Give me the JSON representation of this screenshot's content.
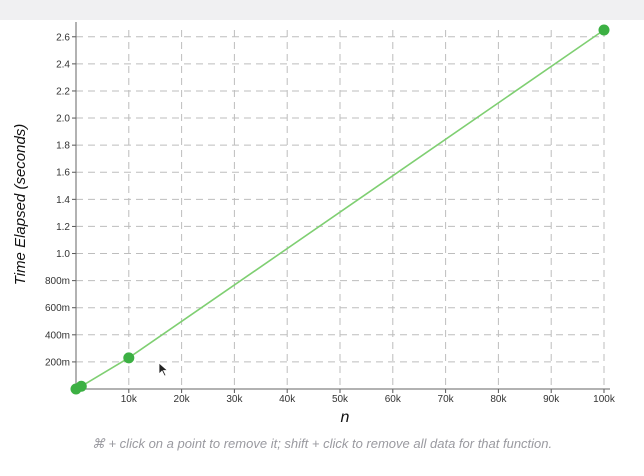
{
  "chart_data": {
    "type": "line",
    "xlabel": "n",
    "ylabel": "Time Elapsed (seconds)",
    "xlim": [
      0,
      100000
    ],
    "ylim": [
      0,
      2.65
    ],
    "grid": true,
    "x_ticks": [
      {
        "value": 10000,
        "label": "10k"
      },
      {
        "value": 20000,
        "label": "20k"
      },
      {
        "value": 30000,
        "label": "30k"
      },
      {
        "value": 40000,
        "label": "40k"
      },
      {
        "value": 50000,
        "label": "50k"
      },
      {
        "value": 60000,
        "label": "60k"
      },
      {
        "value": 70000,
        "label": "70k"
      },
      {
        "value": 80000,
        "label": "80k"
      },
      {
        "value": 90000,
        "label": "90k"
      },
      {
        "value": 100000,
        "label": "100k"
      }
    ],
    "y_ticks": [
      {
        "value": 0.2,
        "label": "200m"
      },
      {
        "value": 0.4,
        "label": "400m"
      },
      {
        "value": 0.6,
        "label": "600m"
      },
      {
        "value": 0.8,
        "label": "800m"
      },
      {
        "value": 1.0,
        "label": "1.0"
      },
      {
        "value": 1.2,
        "label": "1.2"
      },
      {
        "value": 1.4,
        "label": "1.4"
      },
      {
        "value": 1.6,
        "label": "1.6"
      },
      {
        "value": 1.8,
        "label": "1.8"
      },
      {
        "value": 2.0,
        "label": "2.0"
      },
      {
        "value": 2.2,
        "label": "2.2"
      },
      {
        "value": 2.4,
        "label": "2.4"
      },
      {
        "value": 2.6,
        "label": "2.6"
      }
    ],
    "series": [
      {
        "color": "#3cb043",
        "line_color": "#7fcf72",
        "points": [
          {
            "x": 0,
            "y": 0.0
          },
          {
            "x": 1000,
            "y": 0.02
          },
          {
            "x": 10000,
            "y": 0.23
          },
          {
            "x": 100000,
            "y": 2.65
          }
        ]
      }
    ]
  },
  "footer": {
    "note": "⌘ + click on a point to remove it; shift + click to remove all data for that function."
  },
  "icons": {
    "cursor": "mouse-pointer-icon"
  }
}
